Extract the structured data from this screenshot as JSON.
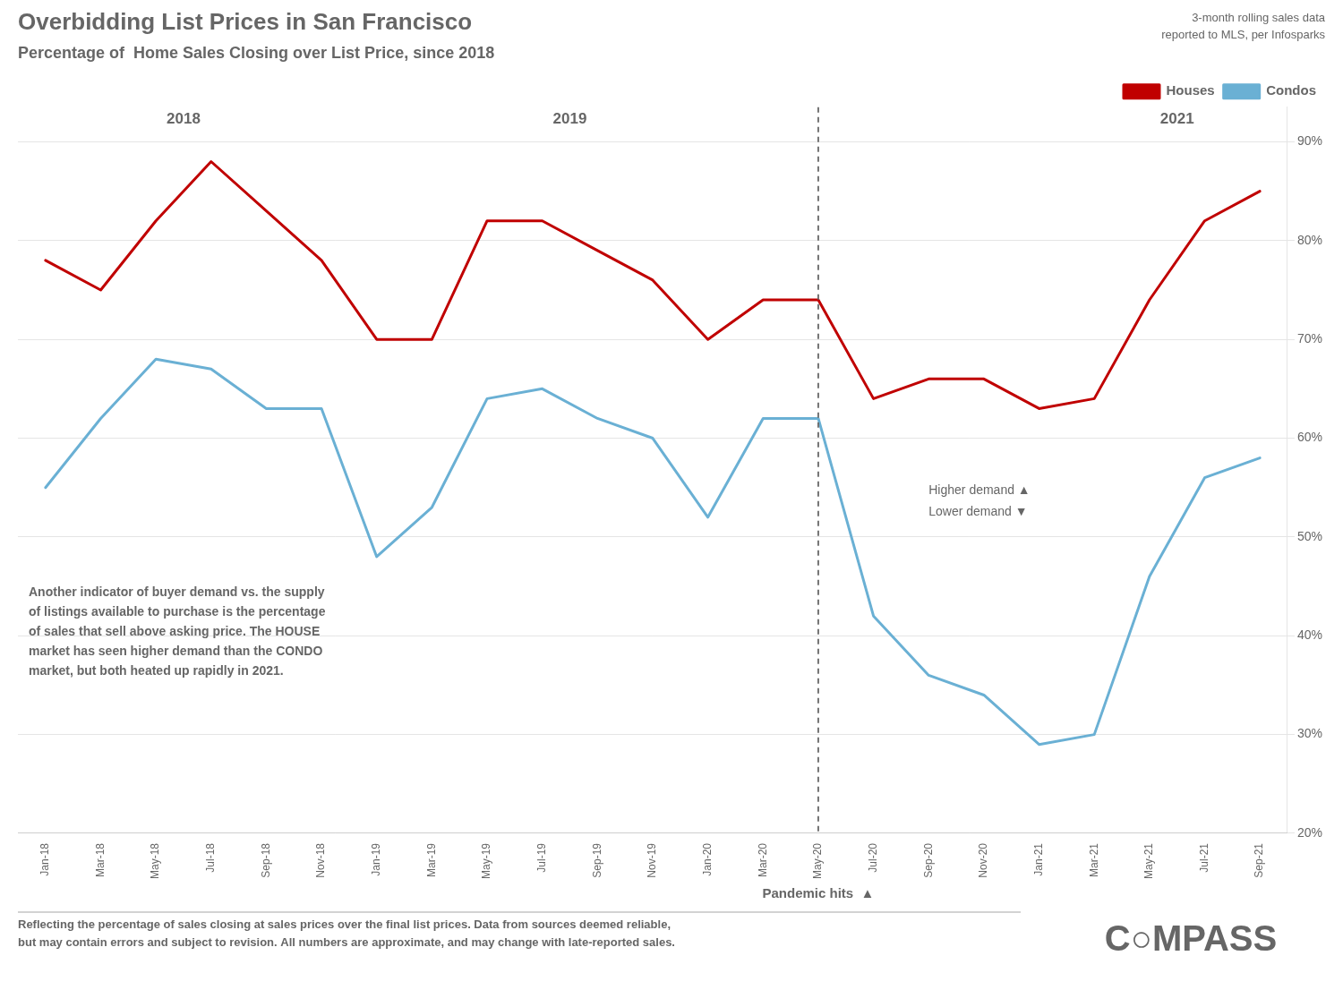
{
  "chart_data": {
    "type": "line",
    "title": "Overbidding List Prices in San Francisco",
    "subtitle": "Percentage of  Home Sales Closing over List Price, since 2018",
    "categories": [
      "Jan-18",
      "Mar-18",
      "May-18",
      "Jul-18",
      "Sep-18",
      "Nov-18",
      "Jan-19",
      "Mar-19",
      "May-19",
      "Jul-19",
      "Sep-19",
      "Nov-19",
      "Jan-20",
      "Mar-20",
      "May-20",
      "Jul-20",
      "Sep-20",
      "Nov-20",
      "Jan-21",
      "Mar-21",
      "May-21",
      "Jul-21",
      "Sep-21"
    ],
    "series": [
      {
        "name": "Houses",
        "color": "#c00000",
        "values": [
          0.78,
          0.75,
          0.82,
          0.88,
          0.83,
          0.78,
          0.7,
          0.7,
          0.82,
          0.82,
          0.79,
          0.76,
          0.7,
          0.74,
          0.74,
          0.64,
          0.66,
          0.66,
          0.63,
          0.64,
          0.74,
          0.82,
          0.85
        ]
      },
      {
        "name": "Condos",
        "color": "#6ab0d4",
        "values": [
          0.55,
          0.62,
          0.68,
          0.67,
          0.63,
          0.63,
          0.48,
          0.53,
          0.64,
          0.65,
          0.62,
          0.6,
          0.52,
          0.62,
          0.62,
          0.42,
          0.36,
          0.34,
          0.29,
          0.3,
          0.46,
          0.56,
          0.58
        ]
      }
    ],
    "ylim": [
      0.2,
      0.935
    ],
    "yticks": [
      {
        "value": 0.2,
        "label": "20%"
      },
      {
        "value": 0.3,
        "label": "30%"
      },
      {
        "value": 0.4,
        "label": "40%"
      },
      {
        "value": 0.5,
        "label": "50%"
      },
      {
        "value": 0.6,
        "label": "60%"
      },
      {
        "value": 0.7,
        "label": "70%"
      },
      {
        "value": 0.8,
        "label": "80%"
      },
      {
        "value": 0.9,
        "label": "90%"
      }
    ],
    "grid": true,
    "legend": "upper right",
    "annotations": [
      {
        "text": "2018"
      },
      {
        "text": "2019"
      },
      {
        "text": "2021"
      },
      {
        "text": "Higher demand ▲\nLower demand ▼"
      },
      {
        "text": "Pandemic hits  ▲",
        "x": "May-20"
      },
      {
        "text": "Another indicator of buyer demand vs. the supply\nof listings available to purchase is the percentage\nof sales that sell above asking price. The HOUSE\nmarket has seen higher demand than the CONDO\nmarket, but both heated up rapidly in 2021."
      },
      {
        "text": "3-month rolling sales data\nreported to MLS, per Infosparks"
      },
      {
        "text": "Reflecting the percentage of sales closing at sales prices over the final list prices. Data from sources deemed reliable,\nbut may contain errors and subject to revision. All numbers are approximate, and may change with late-reported sales."
      },
      {
        "text": "C○MPASS"
      }
    ]
  }
}
